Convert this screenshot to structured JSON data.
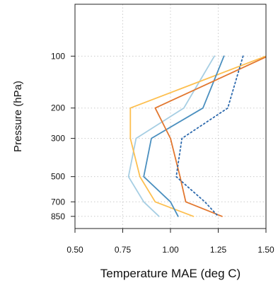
{
  "chart_data": {
    "type": "line",
    "xlabel": "Temperature MAE (deg C)",
    "ylabel": "Pressure (hPa)",
    "xlim": [
      0.5,
      1.5
    ],
    "ylim": [
      1000,
      50
    ],
    "xticks": [
      0.5,
      0.75,
      1.0,
      1.25,
      1.5
    ],
    "xtick_labels": [
      "0.50",
      "0.75",
      "1.00",
      "1.25",
      "1.50"
    ],
    "yticks": [
      100,
      200,
      300,
      500,
      700,
      850
    ],
    "ytick_labels": [
      "100",
      "200",
      "300",
      "500",
      "700",
      "850"
    ],
    "y": [
      100,
      200,
      300,
      500,
      700,
      850
    ],
    "grid": true,
    "legend": "none",
    "series": [
      {
        "color": "#a6cee3",
        "dash": "solid",
        "values": [
          1.23,
          1.07,
          0.82,
          0.78,
          0.86,
          0.94
        ]
      },
      {
        "color": "#fdbf4f",
        "dash": "solid",
        "values": [
          1.5,
          0.79,
          0.79,
          0.84,
          0.92,
          1.12
        ]
      },
      {
        "color": "#4a8fbf",
        "dash": "solid",
        "values": [
          1.28,
          1.17,
          0.9,
          0.86,
          1.0,
          1.04
        ]
      },
      {
        "color": "#e2772f",
        "dash": "solid",
        "values": [
          1.51,
          0.92,
          1.0,
          1.05,
          1.08,
          1.27
        ]
      },
      {
        "color": "#2c69ad",
        "dash": "dotted",
        "values": [
          1.38,
          1.3,
          1.06,
          1.03,
          1.18,
          1.25
        ]
      }
    ]
  }
}
